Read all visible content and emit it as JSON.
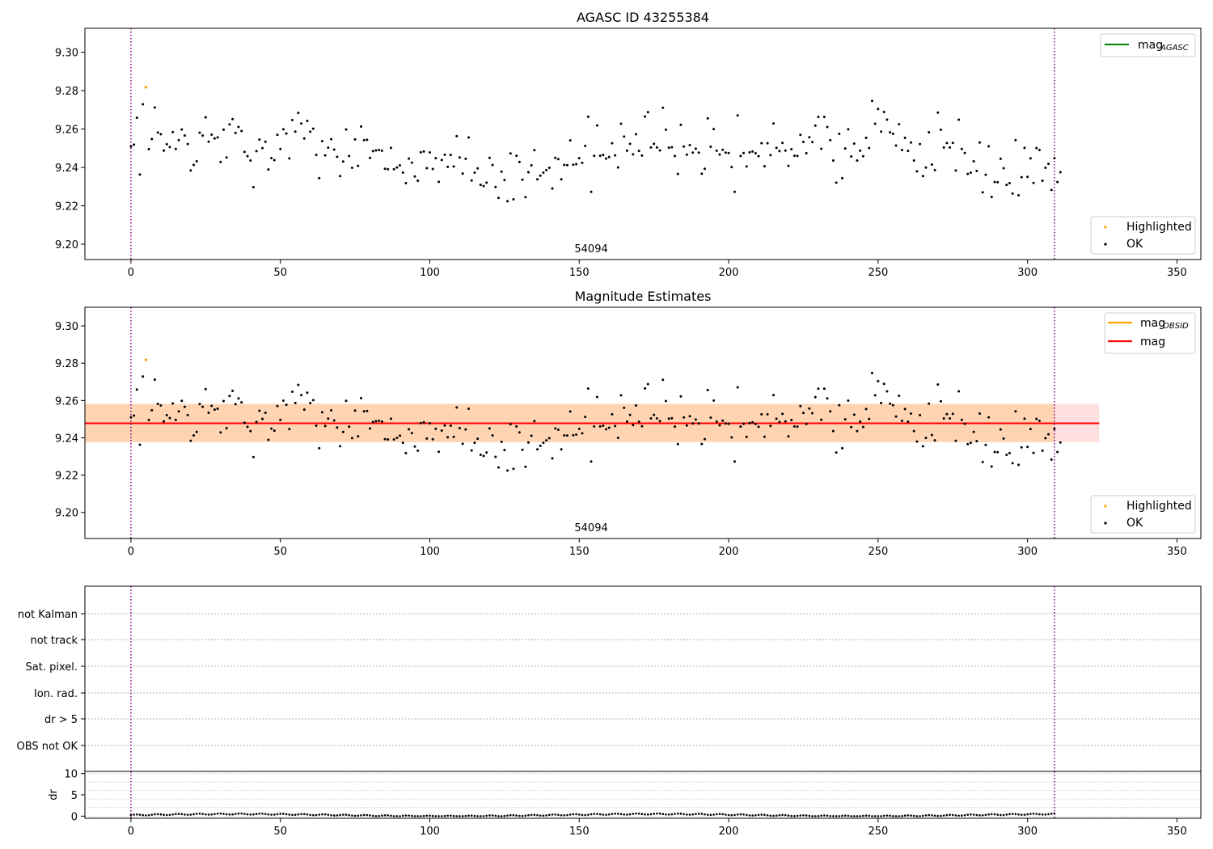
{
  "chart_data": [
    {
      "type": "scatter",
      "title": "AGASC ID 43255384",
      "xlim": [
        -15.4,
        358
      ],
      "ylim": [
        9.192,
        9.3125
      ],
      "xticks": [
        0,
        50,
        100,
        150,
        200,
        250,
        300,
        350
      ],
      "yticks": [
        9.2,
        9.22,
        9.24,
        9.26,
        9.28,
        9.3
      ],
      "ytick_labels": [
        "9.20",
        "9.22",
        "9.24",
        "9.26",
        "9.28",
        "9.30"
      ],
      "vlines": [
        0,
        309
      ],
      "annotation": {
        "text": "54094",
        "x": 154
      },
      "legend_upper": [
        {
          "label": "mag",
          "sub": "AGASC",
          "color": "#008000",
          "kind": "line"
        }
      ],
      "legend_lower": [
        {
          "label": "Highlighted",
          "color": "#ffa500",
          "kind": "point"
        },
        {
          "label": "OK",
          "color": "#000000",
          "kind": "point"
        }
      ],
      "highlighted": [
        [
          5,
          9.2818
        ]
      ],
      "ok_series": [
        9.2509,
        9.2519,
        9.2659,
        9.2363,
        9.2729,
        9.2818,
        9.2495,
        9.2548,
        9.2712,
        9.2582,
        9.2573,
        9.2488,
        9.2521,
        9.2506,
        9.2584,
        9.2496,
        9.2542,
        9.2598,
        9.2566,
        9.2522,
        9.2384,
        9.2413,
        9.2432,
        9.2581,
        9.2566,
        9.2661,
        9.2534,
        9.2571,
        9.2551,
        9.2556,
        9.2429,
        9.2597,
        9.2452,
        9.2624,
        9.2652,
        9.258,
        9.2611,
        9.259,
        9.2481,
        9.2459,
        9.2436,
        9.2297,
        9.2485,
        9.2545,
        9.2501,
        9.2534,
        9.2389,
        9.2449,
        9.2438,
        9.257,
        9.2496,
        9.2599,
        9.2577,
        9.2447,
        9.2647,
        9.2587,
        9.2684,
        9.2629,
        9.2551,
        9.2642,
        9.2586,
        9.2602,
        9.2465,
        9.2344,
        9.2537,
        9.2463,
        9.2503,
        9.2547,
        9.2493,
        9.2455,
        9.2355,
        9.2431,
        9.2598,
        9.246,
        9.2398,
        9.2546,
        9.2408,
        9.2613,
        9.2542,
        9.2544,
        9.245,
        9.2485,
        9.2489,
        9.2491,
        9.2487,
        9.2393,
        9.2391,
        9.2502,
        9.2391,
        9.24,
        9.2411,
        9.2373,
        9.2318,
        9.2446,
        9.2425,
        9.2353,
        9.2331,
        9.2479,
        9.2483,
        9.2396,
        9.2478,
        9.2392,
        9.2448,
        9.2325,
        9.2439,
        9.2466,
        9.2403,
        9.2465,
        9.2405,
        9.2563,
        9.2452,
        9.2368,
        9.2445,
        9.2556,
        9.2332,
        9.2373,
        9.2395,
        9.2309,
        9.2303,
        9.2321,
        9.245,
        9.2413,
        9.2298,
        9.2241,
        9.2378,
        9.2334,
        9.2224,
        9.2473,
        9.2234,
        9.2461,
        9.2429,
        9.2336,
        9.2245,
        9.2375,
        9.2411,
        9.249,
        9.2338,
        9.2357,
        9.2373,
        9.2386,
        9.2398,
        9.229,
        9.245,
        9.2443,
        9.2338,
        9.2413,
        9.2412,
        9.2541,
        9.2414,
        9.2417,
        9.2448,
        9.2424,
        9.2512,
        9.2664,
        9.2273,
        9.2461,
        9.2619,
        9.2461,
        9.2465,
        9.2446,
        9.2454,
        9.2526,
        9.2463,
        9.24,
        9.2628,
        9.2561,
        9.2487,
        9.2523,
        9.2468,
        9.2573,
        9.2486,
        9.2462,
        9.2665,
        9.2688,
        9.2504,
        9.2523,
        9.2504,
        9.2489,
        9.2711,
        9.2597,
        9.2503,
        9.2505,
        9.246,
        9.2366,
        9.2622,
        9.2509,
        9.2466,
        9.2516,
        9.2477,
        9.2498,
        9.2477,
        9.2367,
        9.2393,
        9.2656,
        9.2508,
        9.26,
        9.2487,
        9.2467,
        9.2492,
        9.2477,
        9.2475,
        9.2402,
        9.2273,
        9.2671,
        9.246,
        9.2475,
        9.2405,
        9.2479,
        9.2483,
        9.2474,
        9.2459,
        9.2526,
        9.2406,
        9.2526,
        9.2464,
        9.2629,
        9.2502,
        9.2485,
        9.2528,
        9.2488,
        9.2408,
        9.2495,
        9.2461,
        9.246,
        9.257,
        9.2533,
        9.2474,
        9.2557,
        9.2532,
        9.2618,
        9.2663,
        9.2497,
        9.2663,
        9.2611,
        9.2542,
        9.2436,
        9.2321,
        9.2575,
        9.2344,
        9.2499,
        9.2599,
        9.2457,
        9.2524,
        9.2436,
        9.2487,
        9.2458,
        9.2554,
        9.2501,
        9.2747,
        9.2628,
        9.2704,
        9.2587,
        9.2689,
        9.2649,
        9.2583,
        9.2575,
        9.2514,
        9.2625,
        9.2491,
        9.2554,
        9.2486,
        9.253,
        9.2436,
        9.238,
        9.2522,
        9.2355,
        9.2399,
        9.2583,
        9.2415,
        9.2386,
        9.2686,
        9.2596,
        9.2504,
        9.2527,
        9.2504,
        9.2528,
        9.2384,
        9.2649,
        9.2496,
        9.2475,
        9.2366,
        9.2373,
        9.2432,
        9.2382,
        9.253,
        9.227,
        9.2362,
        9.251,
        9.2246,
        9.2324,
        9.2323,
        9.2445,
        9.2396,
        9.2309,
        9.2318,
        9.2264,
        9.2542,
        9.2255,
        9.2349,
        9.2502,
        9.2351,
        9.2447,
        9.2319,
        9.2501,
        9.2491,
        9.2331,
        9.2398,
        9.2419,
        9.2283,
        9.2448,
        9.2324,
        9.2375
      ]
    },
    {
      "type": "scatter",
      "title": "Magnitude Estimates",
      "xlim": [
        -15.4,
        358
      ],
      "ylim": [
        9.186,
        9.31
      ],
      "xticks": [
        0,
        50,
        100,
        150,
        200,
        250,
        300,
        350
      ],
      "yticks": [
        9.2,
        9.22,
        9.24,
        9.26,
        9.28,
        9.3
      ],
      "ytick_labels": [
        "9.20",
        "9.22",
        "9.24",
        "9.26",
        "9.28",
        "9.30"
      ],
      "vlines": [
        0,
        309
      ],
      "annotation": {
        "text": "54094",
        "x": 154
      },
      "mag_line": {
        "y": 9.2478,
        "x0": -15.4,
        "x1": 324
      },
      "band_obsid": {
        "y0": 9.2377,
        "y1": 9.2582,
        "x0": -15.4,
        "x1": 309
      },
      "band_mag": {
        "y0": 9.2377,
        "y1": 9.2582,
        "x0": -15.4,
        "x1": 324
      },
      "legend_upper": [
        {
          "label": "mag",
          "sub": "OBSID",
          "color": "#ffa500",
          "kind": "line"
        },
        {
          "label": "mag",
          "sub": "",
          "color": "#ff0000",
          "kind": "line"
        }
      ],
      "legend_lower": [
        {
          "label": "Highlighted",
          "color": "#ffa500",
          "kind": "point"
        },
        {
          "label": "OK",
          "color": "#000000",
          "kind": "point"
        }
      ],
      "highlighted": [
        [
          5,
          9.2818
        ]
      ]
    },
    {
      "type": "scatter",
      "title": "",
      "xlim": [
        -15.4,
        358
      ],
      "categories": [
        "not Kalman",
        "not track",
        "Sat. pixel.",
        "Ion. rad.",
        "dr > 5",
        "OBS not OK"
      ],
      "flags": [],
      "vlines": [
        0,
        309
      ]
    },
    {
      "type": "scatter",
      "title": "",
      "ylabel": "dr",
      "xlim": [
        -15.4,
        358
      ],
      "ylim": [
        -0.5,
        10.5
      ],
      "xticks": [
        0,
        50,
        100,
        150,
        200,
        250,
        300,
        350
      ],
      "yticks": [
        0,
        5,
        10
      ],
      "ytick_labels": [
        "0",
        "5",
        "10"
      ],
      "vlines": [
        0,
        309
      ],
      "dr_series_note": "values between 0 and ~0.8 for indices 0-309"
    }
  ]
}
